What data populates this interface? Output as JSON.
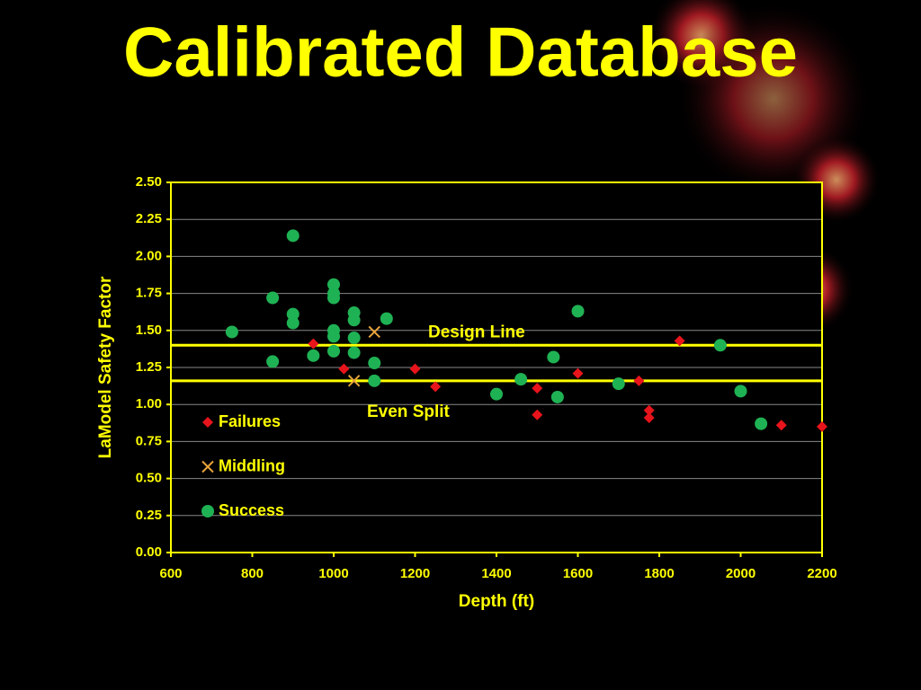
{
  "chart_data": {
    "type": "scatter",
    "title": "Calibrated Database",
    "x_label": "Depth (ft)",
    "y_label": "LaModel Safety Factor",
    "xlim": [
      600,
      2200
    ],
    "xticks": [
      600,
      800,
      1000,
      1200,
      1400,
      1600,
      1800,
      2000,
      2200
    ],
    "ylim": [
      0,
      2.5
    ],
    "yticks": [
      {
        "value": 0,
        "label": "0.00"
      },
      {
        "value": 0.25,
        "label": "0.25"
      },
      {
        "value": 0.5,
        "label": "0.50"
      },
      {
        "value": 0.75,
        "label": "0.75"
      },
      {
        "value": 1,
        "label": "1.00"
      },
      {
        "value": 1.25,
        "label": "1.25"
      },
      {
        "value": 1.5,
        "label": "1.50"
      },
      {
        "value": 1.75,
        "label": "1.75"
      },
      {
        "value": 2,
        "label": "2.00"
      },
      {
        "value": 2.25,
        "label": "2.25"
      },
      {
        "value": 2.5,
        "label": "2.50"
      }
    ],
    "grid": true,
    "legend": "left",
    "reference_lines": [
      {
        "label": "Design Line",
        "value": 1.4,
        "color": "#ffff00"
      },
      {
        "label": "Even Split",
        "value": 1.16,
        "color": "#ffff00"
      }
    ],
    "series": [
      {
        "name": "Failures",
        "color": "#e8141b",
        "marker": "diamond",
        "x": [
          950,
          1025,
          1200,
          1250,
          1500,
          1500,
          1600,
          1750,
          1775,
          1775,
          1850,
          2100,
          2200
        ],
        "values": [
          1.41,
          1.24,
          1.24,
          1.12,
          1.11,
          0.93,
          1.21,
          1.16,
          0.96,
          0.91,
          1.43,
          0.86,
          0.85
        ]
      },
      {
        "name": "Middling",
        "color": "#e8a33b",
        "marker": "x",
        "x": [
          1100,
          1050
        ],
        "values": [
          1.49,
          1.16
        ]
      },
      {
        "name": "Success",
        "color": "#1fb254",
        "marker": "circle",
        "x": [
          750,
          850,
          850,
          900,
          900,
          900,
          950,
          1000,
          1000,
          1000,
          1000,
          1000,
          1000,
          1050,
          1050,
          1050,
          1050,
          1100,
          1100,
          1130,
          1400,
          1460,
          1540,
          1550,
          1600,
          1700,
          1950,
          2000,
          2050
        ],
        "values": [
          1.49,
          1.72,
          1.29,
          2.14,
          1.61,
          1.55,
          1.33,
          1.81,
          1.75,
          1.72,
          1.5,
          1.46,
          1.36,
          1.62,
          1.57,
          1.45,
          1.35,
          1.28,
          1.16,
          1.58,
          1.07,
          1.17,
          1.32,
          1.05,
          1.63,
          1.14,
          1.4,
          1.09,
          0.87
        ]
      }
    ]
  }
}
